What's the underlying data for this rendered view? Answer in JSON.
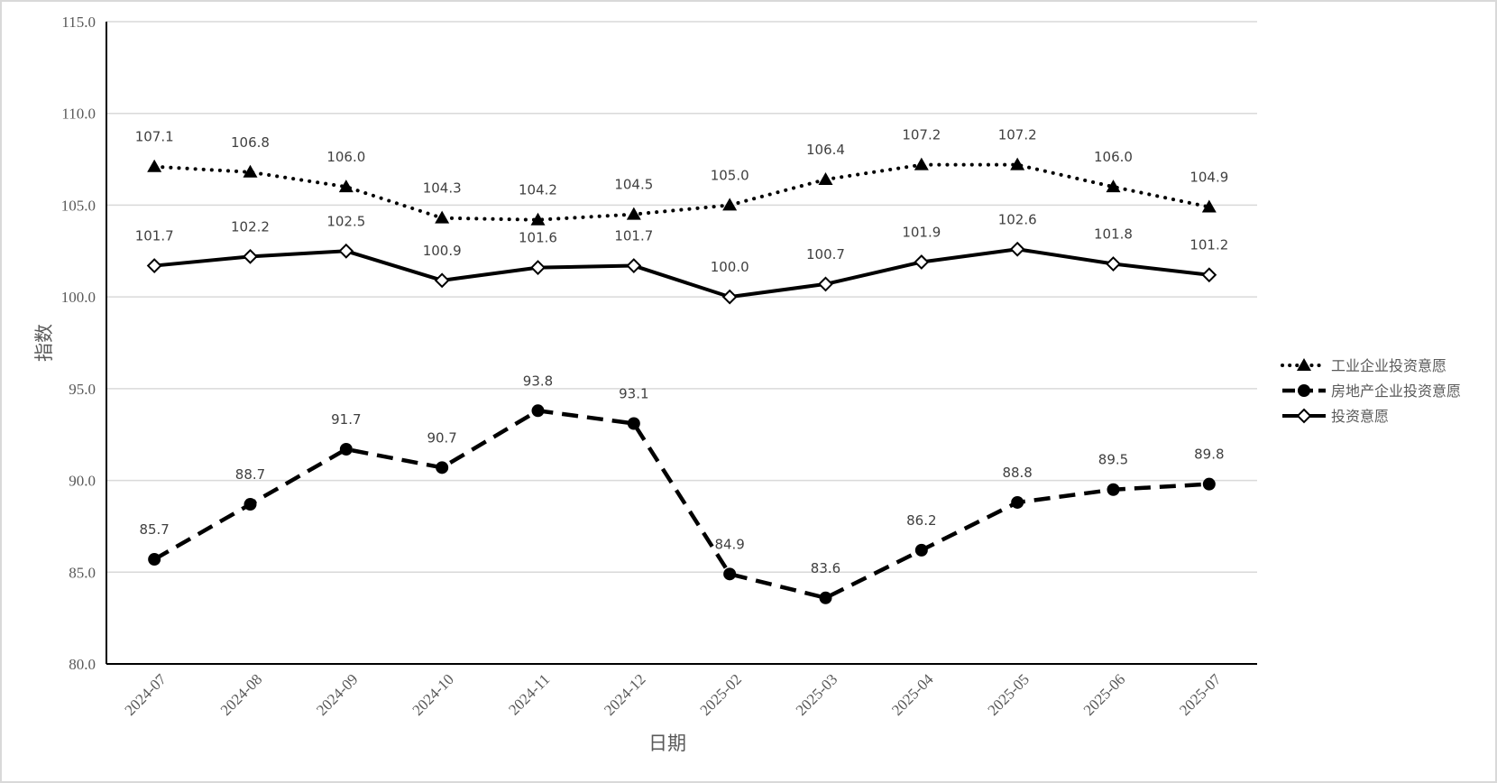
{
  "chart_data": {
    "type": "line",
    "title": "",
    "xlabel": "日期",
    "ylabel": "指数",
    "ylim": [
      80.0,
      115.0
    ],
    "ytick_step": 5.0,
    "yticks": [
      "80.0",
      "85.0",
      "90.0",
      "95.0",
      "100.0",
      "105.0",
      "110.0",
      "115.0"
    ],
    "grid": true,
    "legend_position": "right",
    "categories": [
      "2024-07",
      "2024-08",
      "2024-09",
      "2024-10",
      "2024-11",
      "2024-12",
      "2025-02",
      "2025-03",
      "2025-04",
      "2025-05",
      "2025-06",
      "2025-07"
    ],
    "series": [
      {
        "name": "工业企业投资意愿",
        "line_style": "dotted",
        "marker": "triangle",
        "color": "#000000",
        "values": [
          107.1,
          106.8,
          106.0,
          104.3,
          104.2,
          104.5,
          105.0,
          106.4,
          107.2,
          107.2,
          106.0,
          104.9
        ]
      },
      {
        "name": "房地产企业投资意愿",
        "line_style": "dashed",
        "marker": "circle",
        "color": "#000000",
        "values": [
          85.7,
          88.7,
          91.7,
          90.7,
          93.8,
          93.1,
          84.9,
          83.6,
          86.2,
          88.8,
          89.5,
          89.8
        ]
      },
      {
        "name": "投资意愿",
        "line_style": "solid",
        "marker": "diamond-open",
        "color": "#000000",
        "values": [
          101.7,
          102.2,
          102.5,
          100.9,
          101.6,
          101.7,
          100.0,
          100.7,
          101.9,
          102.6,
          101.8,
          101.2
        ]
      }
    ]
  }
}
